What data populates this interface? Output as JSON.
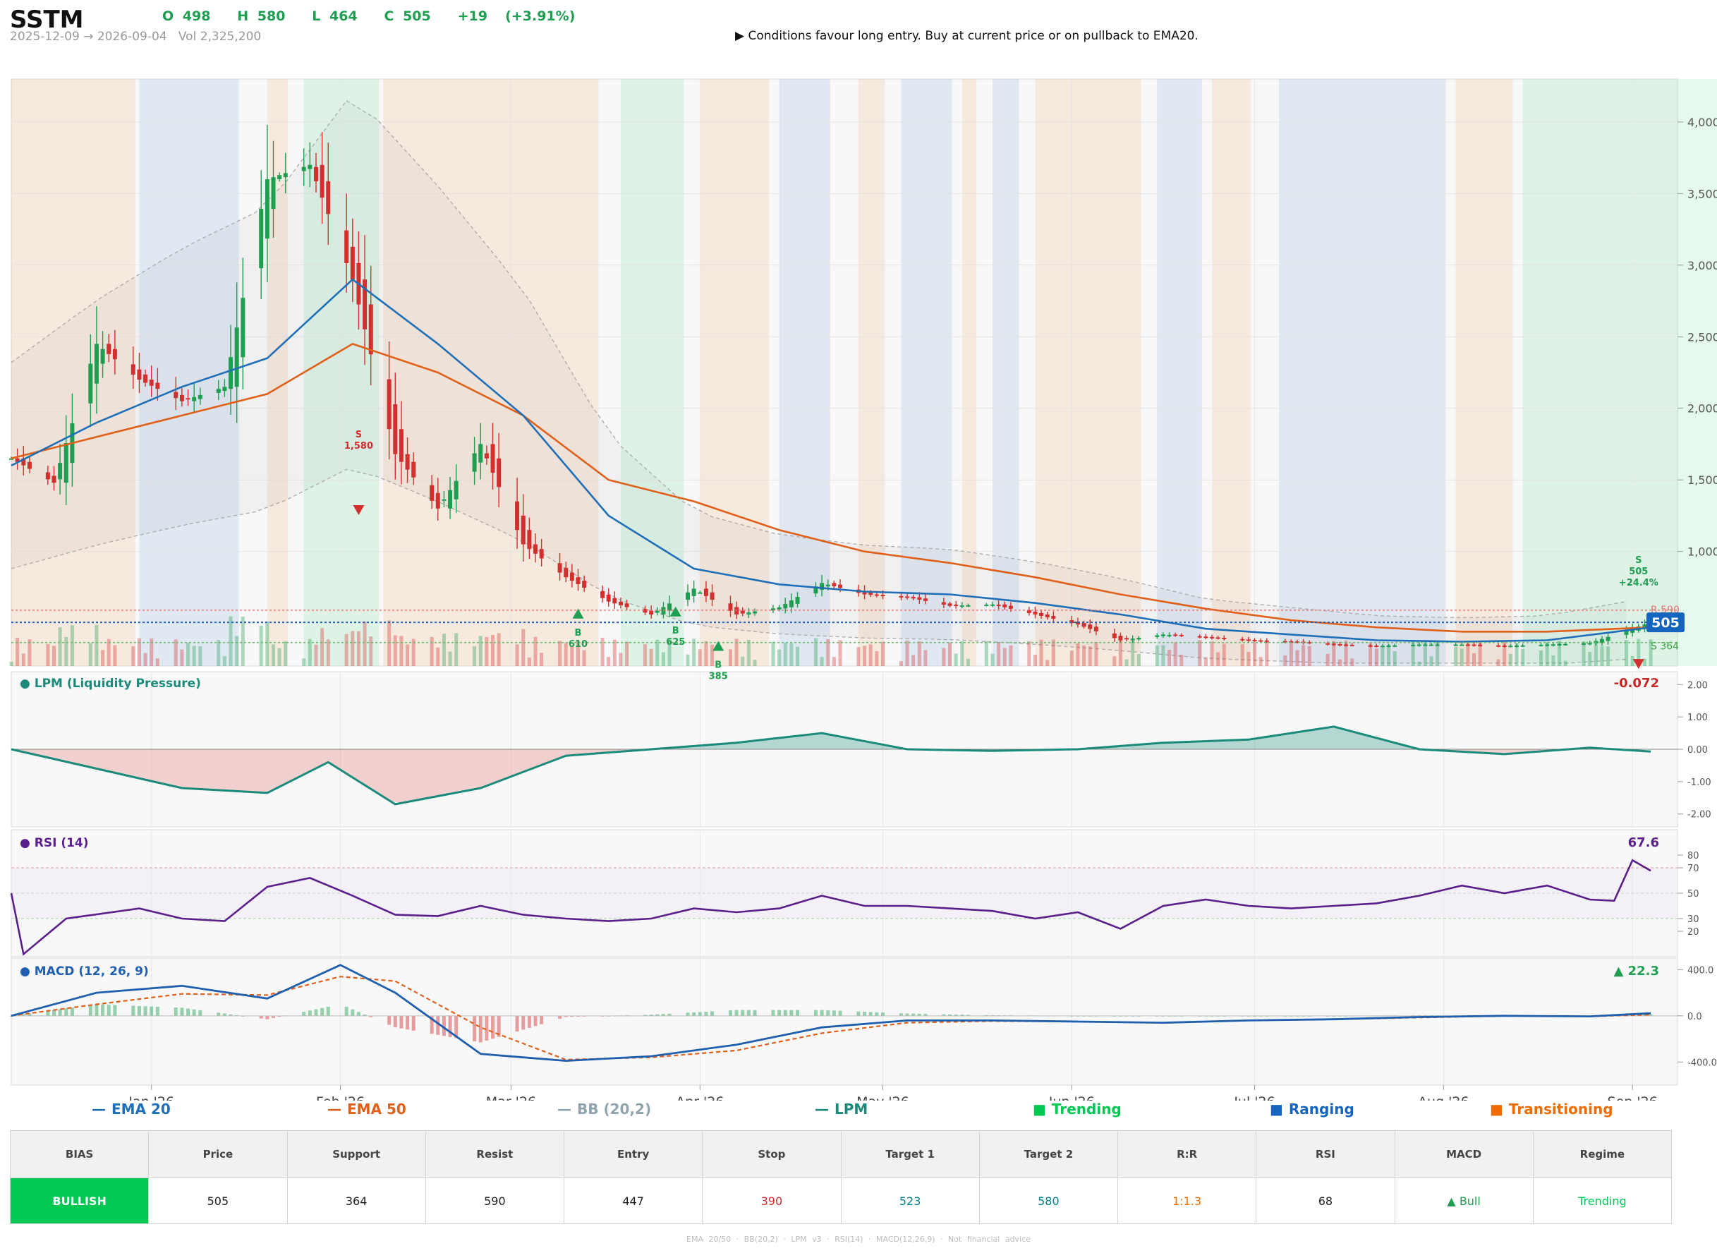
{
  "header": {
    "ticker": "SSTM",
    "ohlc": "O 498   H 580   L 464   C 505   +19  (+3.91%)",
    "range": "2025-12-09 → 2026-09-04   Vol 2,325,200",
    "signal": "▶  Conditions favour long entry. Buy at current price or on pullback to EMA20."
  },
  "colors": {
    "bull": "#1e9e50",
    "bear": "#d32f2f",
    "ema20": "#1f6fb8",
    "ema50": "#e0601a",
    "bb": "#aaaaaa",
    "lpm": "#1a8a7a",
    "rsi": "#5b1f8c",
    "macd": "#1f5fb0",
    "signal_line": "#e0601a",
    "trending": "#00c853",
    "ranging": "#1565c0",
    "transitioning": "#ef6c00"
  },
  "chart_data": [
    {
      "type": "candlestick",
      "title": "",
      "ylim": [
        200,
        4300
      ],
      "yticks": [
        "1,000",
        "1,500",
        "2,000",
        "2,500",
        "3,000",
        "3,500",
        "4,000"
      ],
      "xticks": [
        "Jan '26",
        "Feb '26",
        "Mar '26",
        "Apr '26",
        "May '26",
        "Jun '26",
        "Jul '26",
        "Aug '26",
        "Sep '26"
      ],
      "date_range": [
        "2025-12-09",
        "2026-09-04"
      ],
      "last_price_label": "505",
      "lines": {
        "resistance": 590,
        "price": 505,
        "support": 364
      },
      "line_labels": {
        "resistance": "R 590",
        "support": "S 364"
      },
      "regimes": [
        {
          "start": "2025-12-09",
          "end": "2025-12-29",
          "regime": "Transitioning"
        },
        {
          "start": "2025-12-30",
          "end": "2026-01-15",
          "regime": "Ranging"
        },
        {
          "start": "2026-01-20",
          "end": "2026-01-23",
          "regime": "Transitioning"
        },
        {
          "start": "2026-01-26",
          "end": "2026-02-07",
          "regime": "Trending"
        },
        {
          "start": "2026-02-08",
          "end": "2026-03-15",
          "regime": "Transitioning"
        },
        {
          "start": "2026-03-19",
          "end": "2026-03-29",
          "regime": "Trending"
        },
        {
          "start": "2026-04-01",
          "end": "2026-04-12",
          "regime": "Transitioning"
        },
        {
          "start": "2026-04-14",
          "end": "2026-04-22",
          "regime": "Ranging"
        },
        {
          "start": "2026-04-27",
          "end": "2026-05-01",
          "regime": "Transitioning"
        },
        {
          "start": "2026-05-04",
          "end": "2026-05-12",
          "regime": "Ranging"
        },
        {
          "start": "2026-05-14",
          "end": "2026-05-16",
          "regime": "Transitioning"
        },
        {
          "start": "2026-05-19",
          "end": "2026-05-23",
          "regime": "Ranging"
        },
        {
          "start": "2026-05-26",
          "end": "2026-06-12",
          "regime": "Transitioning"
        },
        {
          "start": "2026-06-15",
          "end": "2026-06-22",
          "regime": "Ranging"
        },
        {
          "start": "2026-06-24",
          "end": "2026-06-30",
          "regime": "Transitioning"
        },
        {
          "start": "2026-07-05",
          "end": "2026-08-01",
          "regime": "Ranging"
        },
        {
          "start": "2026-08-03",
          "end": "2026-08-12",
          "regime": "Transitioning"
        },
        {
          "start": "2026-08-14",
          "end": "2026-09-15",
          "regime": "Trending"
        }
      ],
      "signals": [
        {
          "date": "2026-02-04",
          "side": "S",
          "price": 1580,
          "label": "1,580"
        },
        {
          "date": "2026-03-12",
          "side": "B",
          "price": 610,
          "label": "610"
        },
        {
          "date": "2026-03-28",
          "side": "B",
          "price": 625,
          "label": "625"
        },
        {
          "date": "2026-04-04",
          "side": "B",
          "price": 385,
          "label": "385"
        },
        {
          "date": "2026-09-02",
          "side": "S",
          "price": 505,
          "label": "505",
          "extra": "+24.4%"
        }
      ],
      "legend": [
        "EMA 20",
        "EMA 50",
        "BB (20,2)",
        "LPM",
        "Trending",
        "Ranging",
        "Transitioning"
      ],
      "series": [
        {
          "name": "Price (close)",
          "x": [
            "2025-12-09",
            "2025-12-16",
            "2025-12-23",
            "2025-12-30",
            "2026-01-06",
            "2026-01-13",
            "2026-01-20",
            "2026-01-27",
            "2026-02-03",
            "2026-02-10",
            "2026-02-17",
            "2026-02-24",
            "2026-03-03",
            "2026-03-10",
            "2026-03-17",
            "2026-03-24",
            "2026-03-31",
            "2026-04-07",
            "2026-04-14",
            "2026-04-21",
            "2026-04-28",
            "2026-05-05",
            "2026-05-12",
            "2026-05-19",
            "2026-05-26",
            "2026-06-02",
            "2026-06-09",
            "2026-06-16",
            "2026-06-23",
            "2026-06-30",
            "2026-07-07",
            "2026-07-14",
            "2026-07-21",
            "2026-07-28",
            "2026-08-04",
            "2026-08-11",
            "2026-08-18",
            "2026-08-25",
            "2026-09-04"
          ],
          "y": [
            1650,
            1480,
            2450,
            2200,
            2050,
            2150,
            3600,
            3700,
            2900,
            1680,
            1300,
            1750,
            1050,
            820,
            650,
            560,
            740,
            560,
            610,
            780,
            700,
            680,
            620,
            630,
            560,
            490,
            380,
            420,
            400,
            380,
            370,
            350,
            340,
            350,
            350,
            340,
            350,
            360,
            505
          ]
        },
        {
          "name": "EMA 20",
          "x": [
            "2025-12-09",
            "2025-12-23",
            "2026-01-06",
            "2026-01-20",
            "2026-02-03",
            "2026-02-17",
            "2026-03-03",
            "2026-03-17",
            "2026-03-31",
            "2026-04-14",
            "2026-04-28",
            "2026-05-12",
            "2026-05-26",
            "2026-06-09",
            "2026-06-23",
            "2026-07-07",
            "2026-07-21",
            "2026-08-04",
            "2026-08-18",
            "2026-09-04"
          ],
          "y": [
            1600,
            1900,
            2150,
            2350,
            2900,
            2450,
            1950,
            1250,
            880,
            770,
            720,
            700,
            640,
            560,
            460,
            420,
            380,
            370,
            380,
            470
          ]
        },
        {
          "name": "EMA 50",
          "x": [
            "2025-12-09",
            "2025-12-23",
            "2026-01-06",
            "2026-01-20",
            "2026-02-03",
            "2026-02-17",
            "2026-03-03",
            "2026-03-17",
            "2026-03-31",
            "2026-04-14",
            "2026-04-28",
            "2026-05-12",
            "2026-05-26",
            "2026-06-09",
            "2026-06-23",
            "2026-07-07",
            "2026-07-21",
            "2026-08-04",
            "2026-08-18",
            "2026-09-04"
          ],
          "y": [
            1650,
            1800,
            1950,
            2100,
            2450,
            2250,
            1950,
            1500,
            1350,
            1150,
            1000,
            920,
            820,
            700,
            600,
            520,
            470,
            440,
            440,
            470
          ]
        }
      ]
    },
    {
      "type": "area",
      "title": "LPM (Liquidity Pressure)",
      "value_label": "-0.072",
      "ylim": [
        -2.4,
        2.4
      ],
      "yticks": [
        "2.00",
        "1.00",
        "0.00",
        "-1.00",
        "-2.00"
      ],
      "series": [
        {
          "name": "LPM",
          "x": [
            "2025-12-09",
            "2025-12-23",
            "2026-01-06",
            "2026-01-20",
            "2026-01-30",
            "2026-02-10",
            "2026-02-24",
            "2026-03-10",
            "2026-03-24",
            "2026-04-07",
            "2026-04-21",
            "2026-05-05",
            "2026-05-19",
            "2026-06-02",
            "2026-06-16",
            "2026-06-30",
            "2026-07-14",
            "2026-07-28",
            "2026-08-11",
            "2026-08-25",
            "2026-09-04"
          ],
          "y": [
            0,
            -0.6,
            -1.2,
            -1.35,
            -0.4,
            -1.7,
            -1.2,
            -0.2,
            0,
            0.2,
            0.5,
            0,
            -0.05,
            0,
            0.2,
            0.3,
            0.7,
            0,
            -0.15,
            0.05,
            -0.072
          ]
        }
      ]
    },
    {
      "type": "line",
      "title": "RSI (14)",
      "value_label": "67.6",
      "ylim": [
        0,
        100
      ],
      "yticks": [
        "80",
        "70",
        "50",
        "30",
        "20"
      ],
      "series": [
        {
          "name": "RSI",
          "x": [
            "2025-12-09",
            "2025-12-11",
            "2025-12-18",
            "2025-12-30",
            "2026-01-06",
            "2026-01-13",
            "2026-01-20",
            "2026-01-27",
            "2026-02-03",
            "2026-02-10",
            "2026-02-17",
            "2026-02-24",
            "2026-03-03",
            "2026-03-10",
            "2026-03-17",
            "2026-03-24",
            "2026-03-31",
            "2026-04-07",
            "2026-04-14",
            "2026-04-21",
            "2026-04-28",
            "2026-05-05",
            "2026-05-12",
            "2026-05-19",
            "2026-05-26",
            "2026-06-02",
            "2026-06-09",
            "2026-06-16",
            "2026-06-23",
            "2026-06-30",
            "2026-07-07",
            "2026-07-14",
            "2026-07-21",
            "2026-07-28",
            "2026-08-04",
            "2026-08-11",
            "2026-08-18",
            "2026-08-25",
            "2026-08-29",
            "2026-09-01",
            "2026-09-04"
          ],
          "y": [
            50,
            2,
            30,
            38,
            30,
            28,
            55,
            62,
            48,
            33,
            32,
            40,
            33,
            30,
            28,
            30,
            38,
            35,
            38,
            48,
            40,
            40,
            38,
            36,
            30,
            35,
            22,
            40,
            45,
            40,
            38,
            40,
            42,
            48,
            56,
            50,
            56,
            45,
            44,
            76,
            67.6
          ]
        }
      ]
    },
    {
      "type": "line",
      "title": "MACD (12, 26, 9)",
      "value_label": "▲ 22.3",
      "ylim": [
        -600,
        500
      ],
      "yticks": [
        "400.0",
        "0.0",
        "-400.0"
      ],
      "series": [
        {
          "name": "MACD",
          "x": [
            "2025-12-09",
            "2025-12-23",
            "2026-01-06",
            "2026-01-20",
            "2026-02-01",
            "2026-02-10",
            "2026-02-24",
            "2026-03-10",
            "2026-03-24",
            "2026-04-07",
            "2026-04-21",
            "2026-05-05",
            "2026-05-19",
            "2026-06-02",
            "2026-06-16",
            "2026-06-30",
            "2026-07-14",
            "2026-07-28",
            "2026-08-11",
            "2026-08-25",
            "2026-09-04"
          ],
          "y": [
            0,
            200,
            260,
            150,
            440,
            200,
            -330,
            -390,
            -350,
            -250,
            -100,
            -40,
            -40,
            -50,
            -60,
            -40,
            -30,
            -10,
            0,
            -5,
            22.3
          ]
        },
        {
          "name": "Signal",
          "x": [
            "2025-12-09",
            "2025-12-23",
            "2026-01-06",
            "2026-01-20",
            "2026-02-01",
            "2026-02-10",
            "2026-02-24",
            "2026-03-10",
            "2026-03-24",
            "2026-04-07",
            "2026-04-21",
            "2026-05-05",
            "2026-05-19",
            "2026-06-02",
            "2026-06-16",
            "2026-06-30",
            "2026-07-14",
            "2026-07-28",
            "2026-08-11",
            "2026-08-25",
            "2026-09-04"
          ],
          "y": [
            0,
            100,
            190,
            180,
            340,
            300,
            -100,
            -380,
            -360,
            -300,
            -150,
            -60,
            -45,
            -50,
            -60,
            -40,
            -30,
            -15,
            0,
            -5,
            10
          ]
        }
      ]
    }
  ],
  "legend_items": [
    {
      "label": "EMA 20",
      "symbol": "—",
      "color": "#1f6fb8"
    },
    {
      "label": "EMA 50",
      "symbol": "—",
      "color": "#e0601a"
    },
    {
      "label": "BB (20,2)",
      "symbol": "—",
      "color": "#90a4ae"
    },
    {
      "label": "LPM",
      "symbol": "—",
      "color": "#1a8a7a"
    },
    {
      "label": "Trending",
      "symbol": "■",
      "color": "#00c853"
    },
    {
      "label": "Ranging",
      "symbol": "■",
      "color": "#1565c0"
    },
    {
      "label": "Transitioning",
      "symbol": "■",
      "color": "#ef6c00"
    }
  ],
  "summary": {
    "headers": [
      "BIAS",
      "Price",
      "Support",
      "Resist",
      "Entry",
      "Stop",
      "Target 1",
      "Target 2",
      "R:R",
      "RSI",
      "MACD",
      "Regime"
    ],
    "values": [
      "BULLISH",
      "505",
      "364",
      "590",
      "447",
      "390",
      "523",
      "580",
      "1:1.3",
      "68",
      "▲ Bull",
      "Trending"
    ],
    "value_colors": [
      "#ffffff",
      "#222222",
      "#222222",
      "#222222",
      "#222222",
      "#d32f2f",
      "#00838f",
      "#00838f",
      "#ef6c00",
      "#222222",
      "#1e9e50",
      "#00c853"
    ]
  },
  "footer": "EMA 20/50  ·  BB(20,2)  ·  LPM v3  ·  RSI(14)  ·  MACD(12,26,9)  ·  Not financial advice"
}
